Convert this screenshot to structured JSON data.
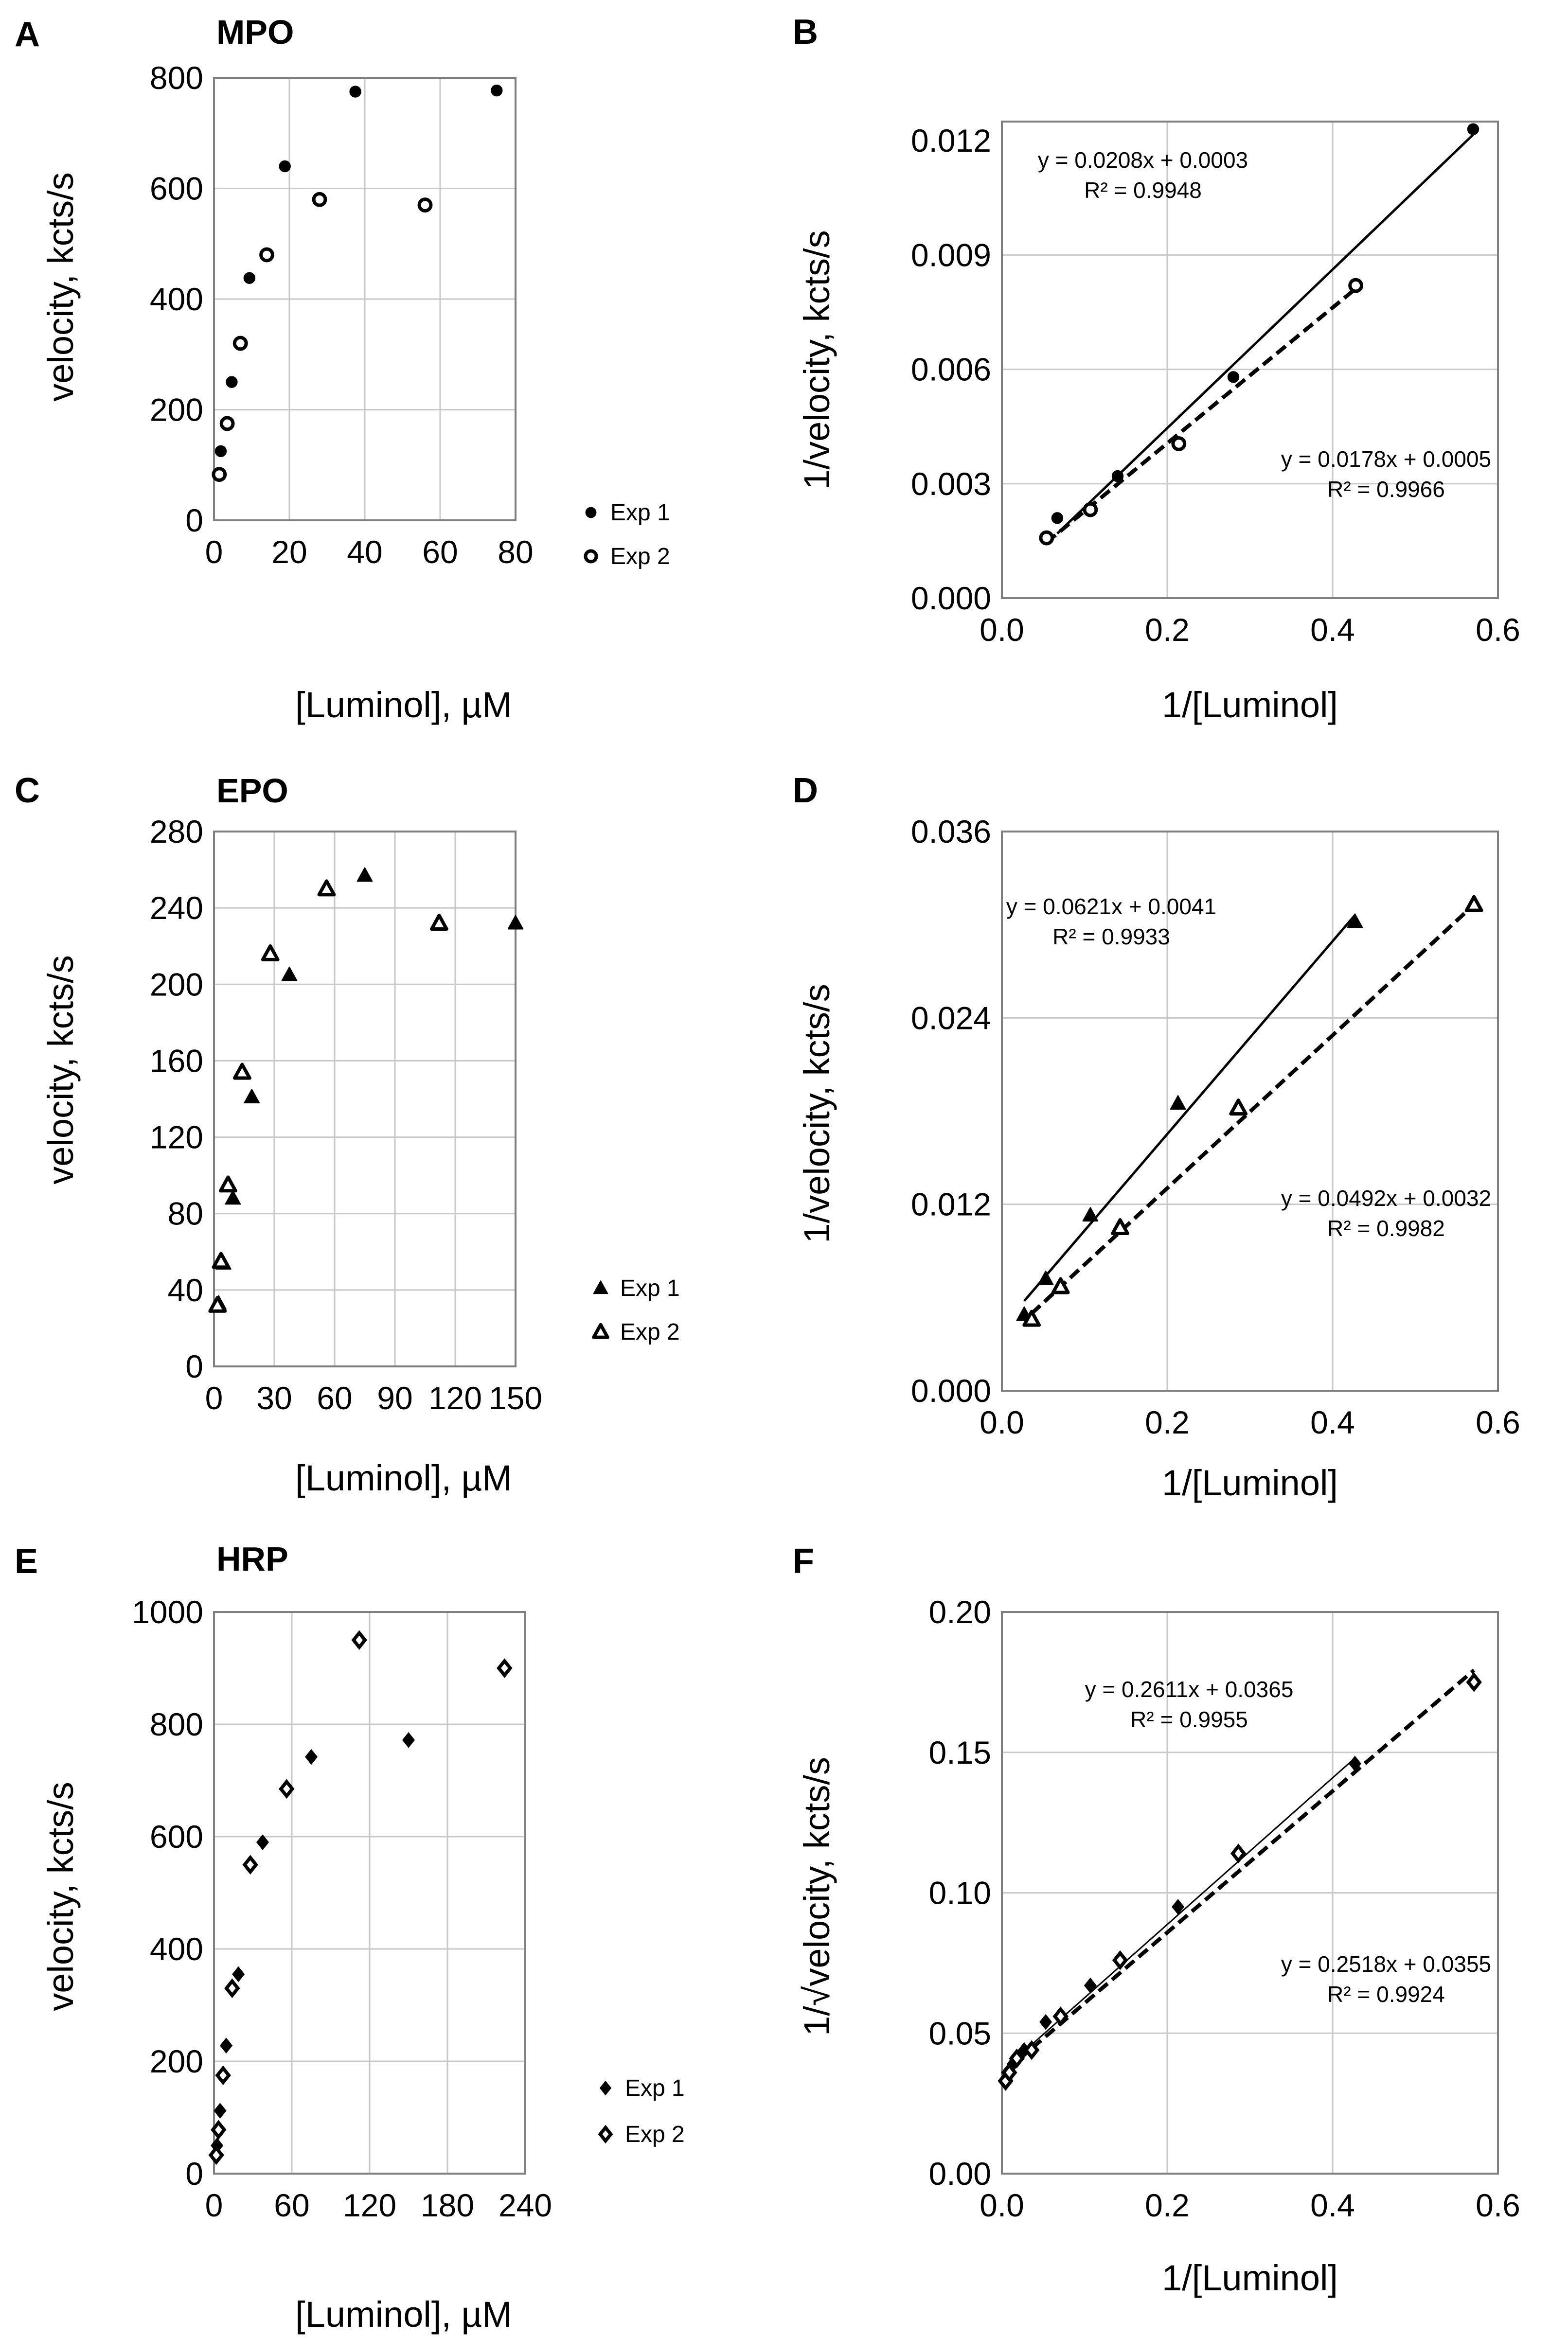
{
  "chart_data": [
    {
      "type": "scatter",
      "panel_letter": "A",
      "title": "MPO",
      "xlabel": "[Luminol], µM",
      "ylabel": "velocity, kcts/s",
      "xlim": [
        0,
        80
      ],
      "ylim": [
        0,
        800
      ],
      "xticks": [
        0,
        20,
        40,
        60,
        80
      ],
      "yticks": [
        0,
        200,
        400,
        600,
        800
      ],
      "xtick_labels": [
        "0",
        "20",
        "40",
        "60",
        "80"
      ],
      "ytick_labels": [
        "0",
        "200",
        "400",
        "600",
        "800"
      ],
      "grid": true,
      "legend_position": "bottom-right",
      "series": [
        {
          "name": "Exp 1",
          "marker": "circle-filled",
          "x": [
            1.8,
            4.7,
            9.4,
            18.8,
            37.5,
            75
          ],
          "y": [
            125,
            250,
            438,
            640,
            775,
            777
          ]
        },
        {
          "name": "Exp 2",
          "marker": "circle-open",
          "x": [
            1.4,
            3.5,
            7,
            14,
            28,
            56
          ],
          "y": [
            83,
            175,
            320,
            480,
            580,
            570
          ]
        }
      ]
    },
    {
      "type": "scatter",
      "panel_letter": "B",
      "title": "",
      "xlabel": "1/[Luminol]",
      "ylabel": "1/velocity, kcts/s",
      "xlim": [
        0,
        0.6
      ],
      "ylim": [
        0,
        0.0125
      ],
      "xticks": [
        0,
        0.2,
        0.4,
        0.6
      ],
      "yticks": [
        0,
        0.003,
        0.006,
        0.009,
        0.012
      ],
      "xtick_labels": [
        "0.0",
        "0.2",
        "0.4",
        "0.6"
      ],
      "ytick_labels": [
        "0.000",
        "0.003",
        "0.006",
        "0.009",
        "0.012"
      ],
      "grid": true,
      "series": [
        {
          "name": "Exp 1",
          "marker": "circle-filled",
          "line": "solid",
          "x": [
            0.067,
            0.14,
            0.28,
            0.57
          ],
          "y": [
            0.0021,
            0.0032,
            0.0058,
            0.0123
          ],
          "fit_x": [
            0.067,
            0.57
          ],
          "equation": "y = 0.0208x + 0.0003",
          "r2": "R² = 0.9948"
        },
        {
          "name": "Exp 2",
          "marker": "circle-open",
          "line": "dashed",
          "x": [
            0.054,
            0.107,
            0.214,
            0.428
          ],
          "y": [
            0.00158,
            0.00232,
            0.00405,
            0.0082
          ],
          "fit_x": [
            0.054,
            0.428
          ],
          "equation": "y = 0.0178x + 0.0005",
          "r2": "R² = 0.9966"
        }
      ]
    },
    {
      "type": "scatter",
      "panel_letter": "C",
      "title": "EPO",
      "xlabel": "[Luminol], µM",
      "ylabel": "velocity, kcts/s",
      "xlim": [
        0,
        150
      ],
      "ylim": [
        0,
        280
      ],
      "xticks": [
        0,
        30,
        60,
        90,
        120,
        150
      ],
      "yticks": [
        0,
        40,
        80,
        120,
        160,
        200,
        240,
        280
      ],
      "xtick_labels": [
        "0",
        "30",
        "60",
        "90",
        "120",
        "150"
      ],
      "ytick_labels": [
        "0",
        "40",
        "80",
        "120",
        "160",
        "200",
        "240",
        "280"
      ],
      "grid": true,
      "legend_position": "bottom-right",
      "series": [
        {
          "name": "Exp 1",
          "marker": "triangle-filled",
          "x": [
            2.3,
            4.7,
            9.4,
            18.8,
            37.5,
            75,
            150
          ],
          "y": [
            33,
            54,
            88,
            141,
            205,
            257,
            232
          ]
        },
        {
          "name": "Exp 2",
          "marker": "triangle-open",
          "x": [
            1.75,
            3.5,
            7,
            14,
            28,
            56,
            112
          ],
          "y": [
            32,
            55,
            95,
            154,
            216,
            250,
            232
          ]
        }
      ]
    },
    {
      "type": "scatter",
      "panel_letter": "D",
      "title": "",
      "xlabel": "1/[Luminol]",
      "ylabel": "1/velocity, kcts/s",
      "xlim": [
        0,
        0.6
      ],
      "ylim": [
        0,
        0.036
      ],
      "xticks": [
        0,
        0.2,
        0.4,
        0.6
      ],
      "yticks": [
        0,
        0.012,
        0.024,
        0.036
      ],
      "xtick_labels": [
        "0.0",
        "0.2",
        "0.4",
        "0.6"
      ],
      "ytick_labels": [
        "0.000",
        "0.012",
        "0.024",
        "0.036"
      ],
      "grid": true,
      "series": [
        {
          "name": "Exp 1",
          "marker": "triangle-filled",
          "line": "solid",
          "x": [
            0.027,
            0.053,
            0.107,
            0.213,
            0.427
          ],
          "y": [
            0.0049,
            0.0072,
            0.0113,
            0.0185,
            0.0302
          ],
          "fit_x": [
            0.027,
            0.427
          ],
          "equation": "y = 0.0621x + 0.0041",
          "r2": "R² = 0.9933"
        },
        {
          "name": "Exp 2",
          "marker": "triangle-open",
          "line": "dashed",
          "x": [
            0.036,
            0.071,
            0.143,
            0.286,
            0.571
          ],
          "y": [
            0.0046,
            0.0067,
            0.0105,
            0.0182,
            0.0313
          ],
          "fit_x": [
            0.036,
            0.571
          ],
          "equation": "y = 0.0492x + 0.0032",
          "r2": "R² = 0.9982"
        }
      ]
    },
    {
      "type": "scatter",
      "panel_letter": "E",
      "title": "HRP",
      "xlabel": "[Luminol], µM",
      "ylabel": "velocity, kcts/s",
      "xlim": [
        0,
        240
      ],
      "ylim": [
        0,
        1000
      ],
      "xticks": [
        0,
        60,
        120,
        180,
        240
      ],
      "yticks": [
        0,
        200,
        400,
        600,
        800,
        1000
      ],
      "xtick_labels": [
        "0",
        "60",
        "120",
        "180",
        "240"
      ],
      "ytick_labels": [
        "0",
        "200",
        "400",
        "600",
        "800",
        "1000"
      ],
      "grid": true,
      "legend_position": "bottom-right",
      "series": [
        {
          "name": "Exp 1",
          "marker": "diamond-filled",
          "x": [
            2.3,
            4.7,
            9.4,
            18.8,
            37.5,
            75,
            150
          ],
          "y": [
            50,
            112,
            228,
            355,
            590,
            742,
            772
          ]
        },
        {
          "name": "Exp 2",
          "marker": "diamond-open",
          "x": [
            1.75,
            3.5,
            7,
            14,
            28,
            56,
            112,
            224
          ],
          "y": [
            33,
            78,
            175,
            330,
            550,
            685,
            950,
            900
          ]
        }
      ]
    },
    {
      "type": "scatter",
      "panel_letter": "F",
      "title": "",
      "xlabel": "1/[Luminol]",
      "ylabel": "1/√velocity, kcts/s",
      "xlim": [
        0,
        0.6
      ],
      "ylim": [
        0,
        0.2
      ],
      "xticks": [
        0,
        0.2,
        0.4,
        0.6
      ],
      "yticks": [
        0,
        0.05,
        0.1,
        0.15,
        0.2
      ],
      "xtick_labels": [
        "0.0",
        "0.2",
        "0.4",
        "0.6"
      ],
      "ytick_labels": [
        "0.00",
        "0.05",
        "0.10",
        "0.15",
        "0.20"
      ],
      "grid": true,
      "series": [
        {
          "name": "Exp 1",
          "marker": "diamond-filled",
          "line": "solid-thin",
          "x": [
            0.0067,
            0.0133,
            0.027,
            0.053,
            0.107,
            0.213,
            0.427
          ],
          "y": [
            0.036,
            0.039,
            0.044,
            0.054,
            0.067,
            0.095,
            0.146
          ],
          "fit_x": [
            0.0067,
            0.427
          ],
          "equation": "y = 0.2611x + 0.0365",
          "r2": "R² = 0.9955"
        },
        {
          "name": "Exp 2",
          "marker": "diamond-open",
          "line": "dashed",
          "x": [
            0.0045,
            0.009,
            0.018,
            0.036,
            0.071,
            0.143,
            0.286,
            0.571
          ],
          "y": [
            0.033,
            0.036,
            0.041,
            0.044,
            0.056,
            0.076,
            0.114,
            0.175
          ],
          "fit_x": [
            0.0045,
            0.571
          ],
          "equation": "y = 0.2518x + 0.0355",
          "r2": "R² = 0.9924"
        }
      ]
    }
  ]
}
